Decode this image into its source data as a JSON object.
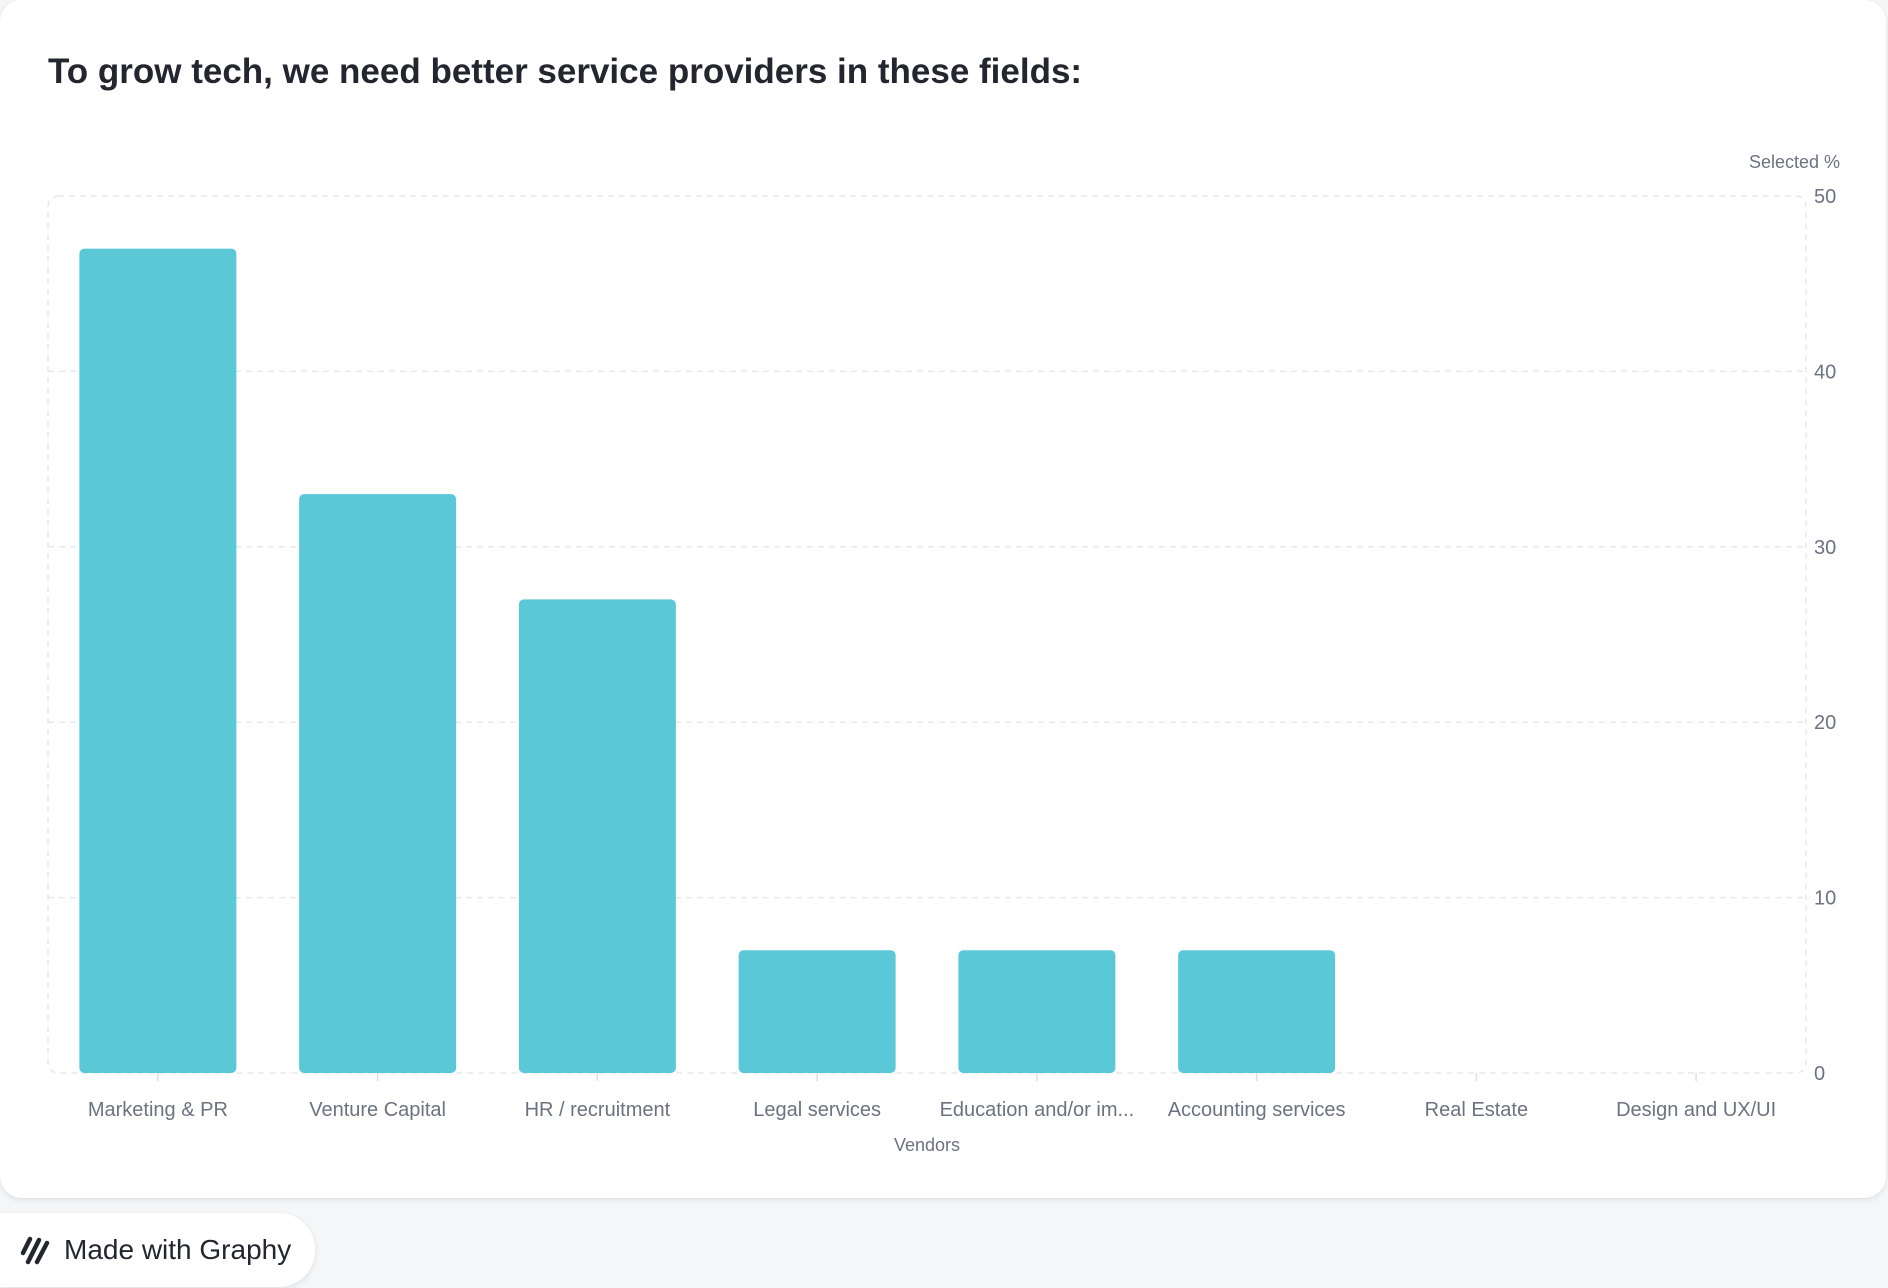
{
  "chart_data": {
    "type": "bar",
    "title": "To grow tech, we need better service providers in these fields:",
    "xlabel": "Vendors",
    "ylabel": "Selected %",
    "categories": [
      "Marketing & PR",
      "Venture Capital",
      "HR / recruitment",
      "Legal services",
      "Education and/or im...",
      "Accounting services",
      "Real Estate",
      "Design and UX/UI"
    ],
    "values": [
      47,
      33,
      27,
      7,
      7,
      7,
      0,
      0
    ],
    "ylim": [
      0,
      50
    ],
    "yticks": [
      0,
      10,
      20,
      30,
      40,
      50
    ],
    "grid": true,
    "y_axis_side": "right",
    "bar_color": "#5bc8d8"
  },
  "footer": {
    "badge_label": "Made with Graphy",
    "badge_icon": "graphy-logo-icon"
  }
}
